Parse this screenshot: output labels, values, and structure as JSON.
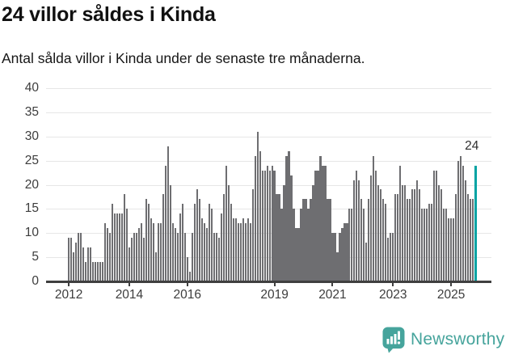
{
  "title": "24 villor såldes i Kinda",
  "subtitle": "Antal sålda villor i Kinda under de senaste tre månaderna.",
  "chart_data": {
    "type": "bar",
    "title": "24 villor såldes i Kinda",
    "xlabel": "",
    "ylabel": "",
    "ylim": [
      0,
      40
    ],
    "grid": true,
    "legend": false,
    "y_ticks": [
      0,
      5,
      10,
      15,
      20,
      25,
      30,
      35,
      40
    ],
    "x_ticks": [
      {
        "label": "2012",
        "index": 0
      },
      {
        "label": "2014",
        "index": 25
      },
      {
        "label": "2016",
        "index": 49
      },
      {
        "label": "2019",
        "index": 85
      },
      {
        "label": "2021",
        "index": 109
      },
      {
        "label": "2023",
        "index": 134
      },
      {
        "label": "2025",
        "index": 158
      }
    ],
    "values": [
      9,
      9,
      6,
      8,
      10,
      10,
      7,
      4,
      7,
      7,
      4,
      4,
      4,
      4,
      4,
      12,
      11,
      10,
      16,
      14,
      14,
      14,
      14,
      18,
      15,
      7,
      9,
      10,
      10,
      11,
      12,
      9,
      17,
      16,
      13,
      12,
      6,
      12,
      12,
      18,
      24,
      28,
      20,
      12,
      11,
      10,
      14,
      16,
      10,
      5,
      2,
      10,
      16,
      19,
      17,
      13,
      12,
      11,
      16,
      15,
      10,
      10,
      9,
      14,
      18,
      24,
      20,
      16,
      13,
      13,
      12,
      12,
      13,
      12,
      13,
      12,
      19,
      26,
      31,
      27,
      23,
      23,
      24,
      23,
      24,
      23,
      18,
      18,
      15,
      20,
      26,
      27,
      22,
      15,
      11,
      11,
      15,
      17,
      17,
      15,
      17,
      20,
      23,
      23,
      26,
      24,
      24,
      17,
      17,
      10,
      10,
      6,
      10,
      11,
      12,
      12,
      15,
      15,
      21,
      23,
      21,
      17,
      15,
      8,
      17,
      22,
      26,
      23,
      20,
      19,
      17,
      16,
      9,
      10,
      10,
      18,
      18,
      24,
      20,
      20,
      17,
      17,
      19,
      19,
      21,
      19,
      15,
      15,
      15,
      16,
      16,
      23,
      23,
      20,
      19,
      15,
      15,
      13,
      13,
      13,
      18,
      25,
      26,
      24,
      21,
      18,
      17,
      17,
      24
    ],
    "highlight_index": 168,
    "highlight_label": "24"
  },
  "footer": {
    "brand": "Newsworthy"
  },
  "colors": {
    "bar": "#6e6e71",
    "highlight": "#00a3a3",
    "grid": "#e6e6e6",
    "axis": "#3f3f3f",
    "tick_text": "#3d3d3d",
    "annotation_text": "#2e2e2e",
    "logo": "#46a49c",
    "background": "#ffffff"
  }
}
